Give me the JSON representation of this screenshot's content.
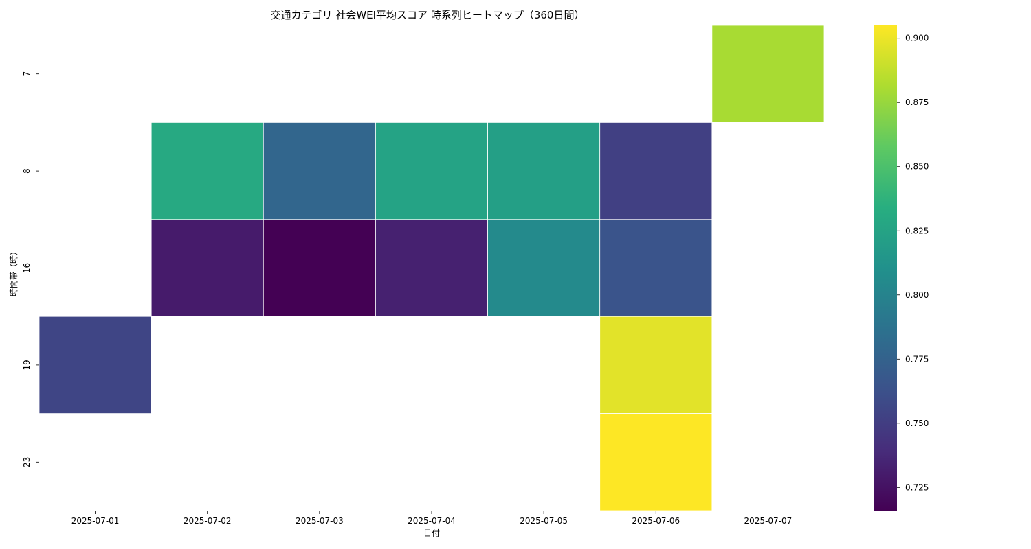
{
  "chart_data": {
    "type": "heatmap",
    "title": "交通カテゴリ 社会WEI平均スコア 時系列ヒートマップ（360日間）",
    "xlabel": "日付",
    "ylabel": "時間帯（時）",
    "x_categories": [
      "2025-07-01",
      "2025-07-02",
      "2025-07-03",
      "2025-07-04",
      "2025-07-05",
      "2025-07-06",
      "2025-07-07"
    ],
    "y_categories": [
      "7",
      "8",
      "16",
      "19",
      "23"
    ],
    "values": [
      [
        null,
        null,
        null,
        null,
        null,
        null,
        0.88
      ],
      [
        null,
        0.83,
        0.778,
        0.825,
        0.822,
        0.752,
        null
      ],
      [
        null,
        0.73,
        0.716,
        0.733,
        0.805,
        0.765,
        null
      ],
      [
        0.755,
        null,
        null,
        null,
        null,
        0.897,
        null
      ],
      [
        null,
        null,
        null,
        null,
        null,
        0.905,
        null
      ]
    ],
    "colormap": "viridis",
    "vmin": 0.716,
    "vmax": 0.905,
    "colorbar_ticks": [
      "0.725",
      "0.750",
      "0.775",
      "0.800",
      "0.825",
      "0.850",
      "0.875",
      "0.900"
    ],
    "grid": false,
    "cell_border_color": "#ffffff"
  }
}
